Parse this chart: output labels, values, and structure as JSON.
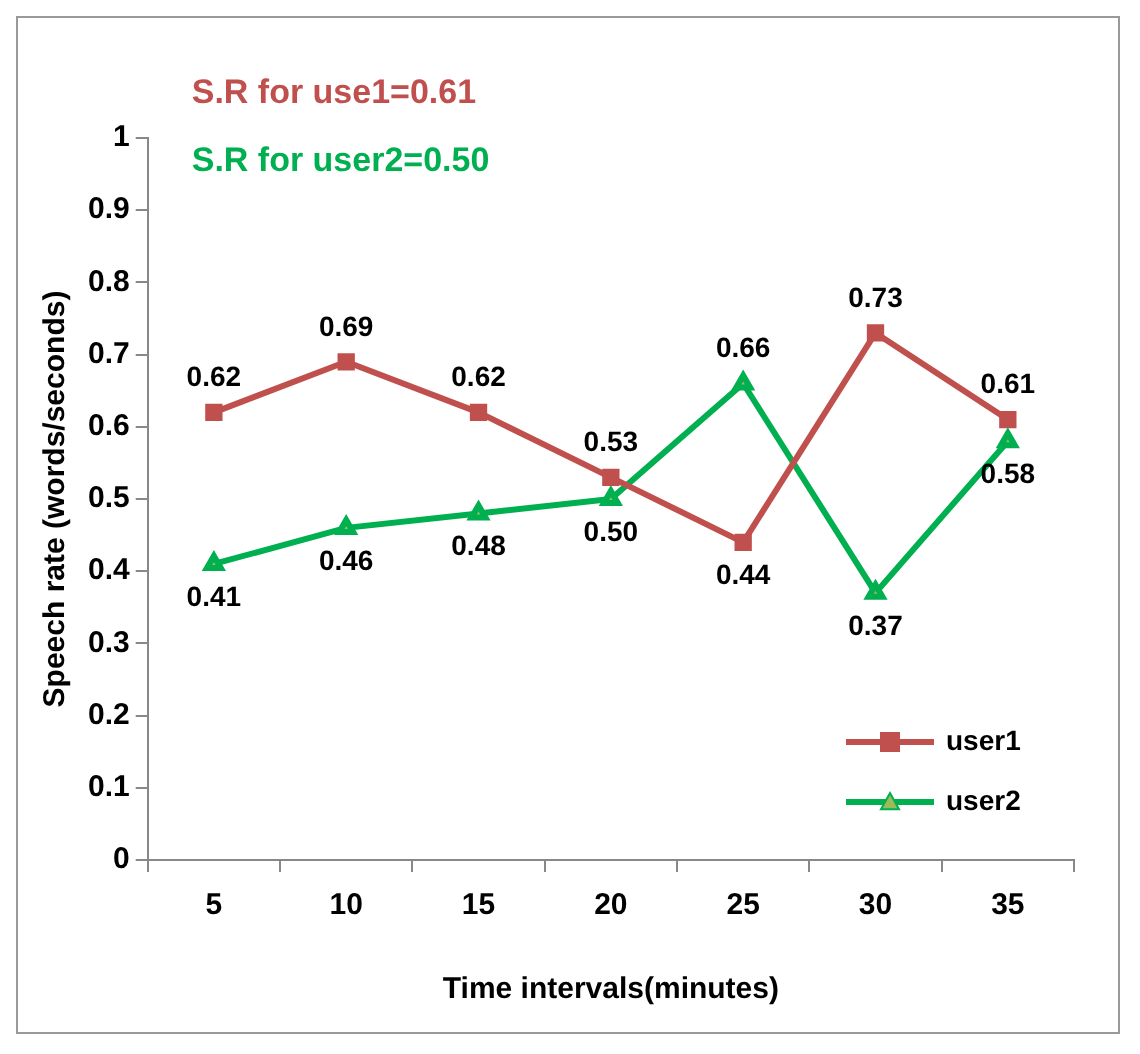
{
  "chart_data": {
    "type": "line",
    "xlabel": "Time intervals(minutes)",
    "ylabel": "Speech rate (words/seconds)",
    "categories": [
      "5",
      "10",
      "15",
      "20",
      "25",
      "30",
      "35"
    ],
    "series": [
      {
        "name": "user1",
        "color": "#c0504d",
        "marker": "square",
        "values": [
          0.62,
          0.69,
          0.62,
          0.53,
          0.44,
          0.73,
          0.61
        ],
        "value_labels": [
          "0.62",
          "0.69",
          "0.62",
          "0.53",
          "0.44",
          "0.73",
          "0.61"
        ]
      },
      {
        "name": "user2",
        "color": "#00b050",
        "marker": "triangle",
        "values": [
          0.41,
          0.46,
          0.48,
          0.5,
          0.66,
          0.37,
          0.58
        ],
        "value_labels": [
          "0.41",
          "0.46",
          "0.48",
          "0.50",
          "0.66",
          "0.37",
          "0.58"
        ]
      }
    ],
    "annotations": [
      "S.R for use1=0.61",
      "S.R for user2=0.50"
    ],
    "ylim": [
      0,
      1
    ],
    "yticks": [
      0,
      0.1,
      0.2,
      0.3,
      0.4,
      0.5,
      0.6,
      0.7,
      0.8,
      0.9,
      1
    ],
    "legend": "bottom right"
  }
}
